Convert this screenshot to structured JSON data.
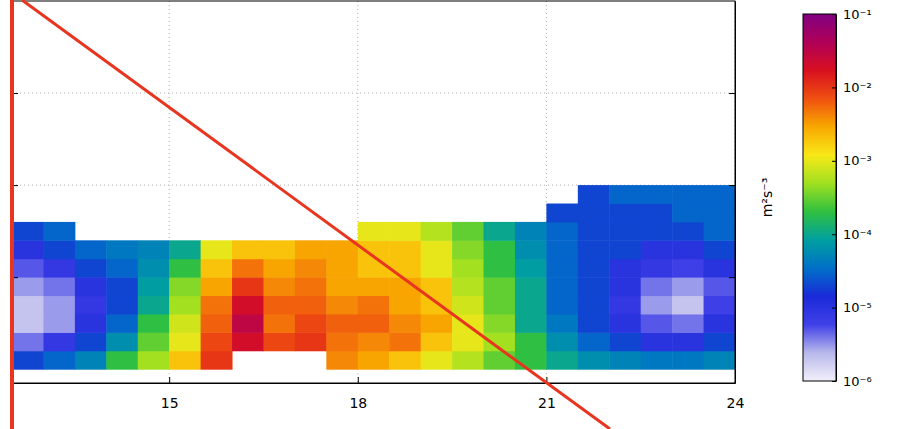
{
  "chart_data": {
    "type": "heatmap",
    "xlim": [
      12.5,
      24
    ],
    "ylim": [
      -0.15,
      4
    ],
    "xticks": [
      15,
      18,
      21,
      24
    ],
    "yticks": [
      1,
      2,
      3
    ],
    "grid": true,
    "tick_labels": "x",
    "x_bins": [
      12.5,
      13,
      13.5,
      14,
      14.5,
      15,
      15.5,
      16,
      16.5,
      17,
      17.5,
      18,
      18.5,
      19,
      19.5,
      20,
      20.5,
      21,
      21.5,
      22,
      22.5,
      23,
      23.5,
      24
    ],
    "y_bins": [
      0,
      0.2,
      0.4,
      0.6,
      0.8,
      1.0,
      1.2,
      1.4,
      1.6,
      1.8,
      2.0
    ],
    "values": [
      [
        2e-05,
        3e-05,
        5e-05,
        0.0002,
        0.0005,
        0.002,
        0.01,
        null,
        null,
        null,
        0.004,
        0.003,
        0.002,
        0.001,
        0.0006,
        0.0003,
        0.0002,
        0.0001,
        6e-05,
        5e-05,
        4e-05,
        4e-05,
        5e-05
      ],
      [
        4e-06,
        8e-06,
        2e-05,
        6e-05,
        0.0003,
        0.001,
        0.008,
        0.02,
        0.008,
        0.01,
        0.005,
        0.004,
        0.005,
        0.002,
        0.001,
        0.0005,
        0.0002,
        6e-05,
        3e-05,
        2e-05,
        1e-05,
        1e-05,
        2e-05
      ],
      [
        2e-06,
        3e-06,
        1e-05,
        3e-05,
        0.0002,
        0.0008,
        0.006,
        0.03,
        0.005,
        0.008,
        0.006,
        0.006,
        0.004,
        0.003,
        0.001,
        0.0004,
        0.0001,
        4e-05,
        2e-05,
        1e-05,
        5e-06,
        4e-06,
        1e-05
      ],
      [
        2e-06,
        3e-06,
        8e-06,
        2e-05,
        0.0001,
        0.0005,
        0.005,
        0.02,
        0.006,
        0.006,
        0.004,
        0.005,
        0.003,
        0.002,
        0.0008,
        0.0003,
        0.0001,
        3e-05,
        2e-05,
        8e-06,
        3e-06,
        2e-06,
        6e-06
      ],
      [
        3e-06,
        4e-06,
        1e-05,
        2e-05,
        8e-05,
        0.0004,
        0.003,
        0.01,
        0.004,
        0.005,
        0.003,
        0.003,
        0.003,
        0.002,
        0.0006,
        0.0003,
        0.0001,
        3e-05,
        2e-05,
        1e-05,
        4e-06,
        3e-06,
        5e-06
      ],
      [
        5e-06,
        8e-06,
        2e-05,
        3e-05,
        6e-05,
        0.0002,
        0.002,
        0.005,
        0.003,
        0.004,
        0.003,
        0.002,
        0.002,
        0.001,
        0.0005,
        0.0002,
        8e-05,
        3e-05,
        2e-05,
        1e-05,
        8e-06,
        6e-06,
        1e-05
      ],
      [
        1e-05,
        2e-05,
        3e-05,
        4e-05,
        5e-05,
        0.0001,
        0.001,
        0.002,
        0.002,
        0.003,
        0.003,
        0.002,
        0.002,
        0.001,
        0.0004,
        0.0002,
        6e-05,
        3e-05,
        2e-05,
        2e-05,
        1e-05,
        1e-05,
        2e-05
      ],
      [
        2e-05,
        3e-05,
        null,
        null,
        null,
        null,
        null,
        null,
        null,
        null,
        null,
        0.001,
        0.001,
        0.0006,
        0.0003,
        0.0001,
        5e-05,
        3e-05,
        2e-05,
        2e-05,
        2e-05,
        2e-05,
        3e-05
      ],
      [
        null,
        null,
        null,
        null,
        null,
        null,
        null,
        null,
        null,
        null,
        null,
        null,
        null,
        null,
        null,
        null,
        null,
        2e-05,
        2e-05,
        2e-05,
        2e-05,
        3e-05,
        3e-05
      ],
      [
        null,
        null,
        null,
        null,
        null,
        null,
        null,
        null,
        null,
        null,
        null,
        null,
        null,
        null,
        null,
        null,
        null,
        null,
        2e-05,
        3e-05,
        3e-05,
        3e-05,
        3e-05
      ]
    ],
    "colorbar": {
      "range": [
        1e-06,
        0.1
      ],
      "log": true,
      "label": "m²s⁻³",
      "ticks": [
        {
          "value": 1e-06,
          "label": "10⁻⁶"
        },
        {
          "value": 1e-05,
          "label": "10⁻⁵"
        },
        {
          "value": 0.0001,
          "label": "10⁻⁴"
        },
        {
          "value": 0.001,
          "label": "10⁻³"
        },
        {
          "value": 0.01,
          "label": "10⁻²"
        },
        {
          "value": 0.1,
          "label": "10⁻¹"
        }
      ]
    }
  }
}
